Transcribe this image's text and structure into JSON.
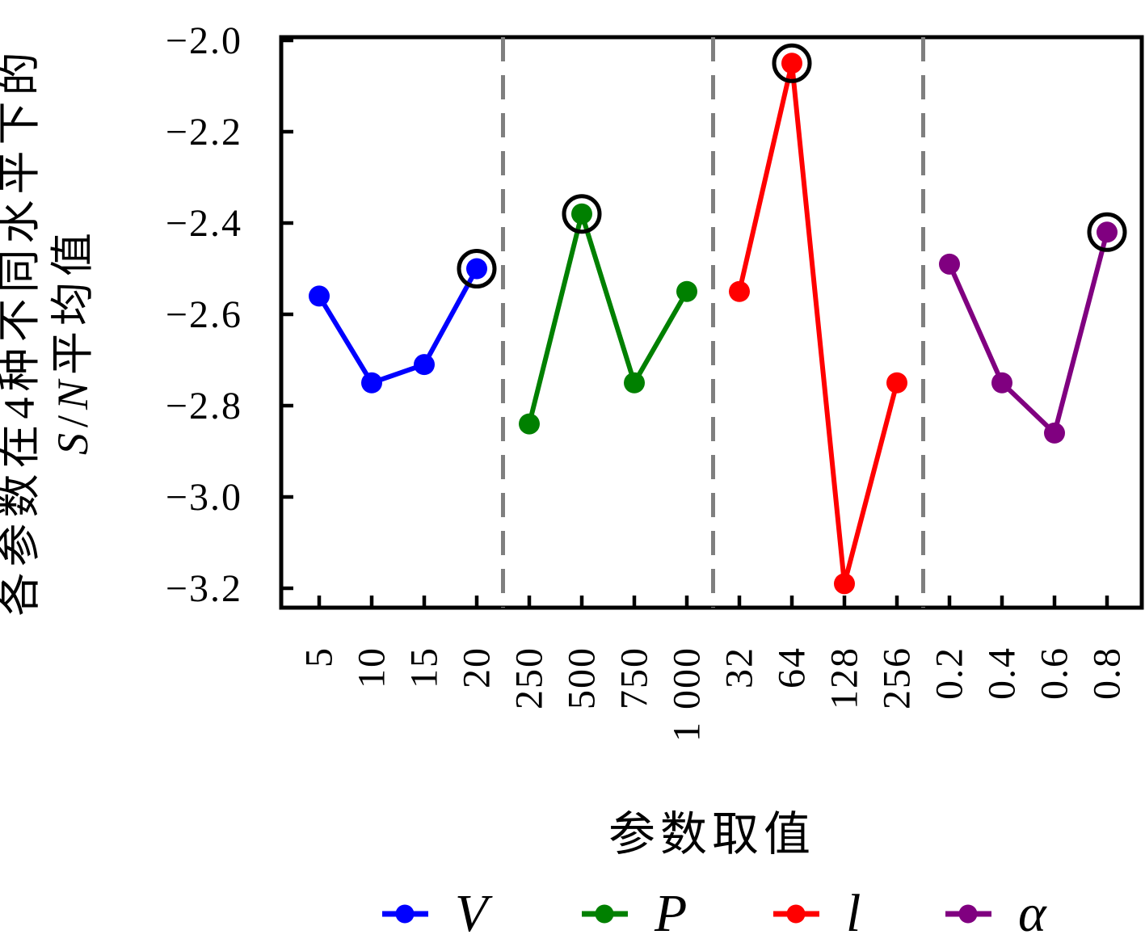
{
  "figure": {
    "background": "#ffffff",
    "ylabel_line1": "各参数在4种不同水平下的",
    "ylabel_sn": {
      "s": "S",
      "slash": "/",
      "n": "N",
      "suffix": "平均值"
    },
    "xlabel": "参数取值"
  },
  "chart_data": {
    "type": "line",
    "title": "",
    "xlabel": "参数取值",
    "ylabel": "各参数在4种不同水平下的 S/N平均值",
    "ylim": [
      -3.24,
      -1.99
    ],
    "yticks": [
      -2.0,
      -2.2,
      -2.4,
      -2.6,
      -2.8,
      -3.0,
      -3.2
    ],
    "ytick_labels": [
      "−2.0",
      "−2.2",
      "−2.4",
      "−2.6",
      "−2.8",
      "−3.0",
      "−3.2"
    ],
    "categories": [
      "5",
      "10",
      "15",
      "20",
      "250",
      "500",
      "750",
      "1 000",
      "32",
      "64",
      "128",
      "256",
      "0.2",
      "0.4",
      "0.6",
      "0.8"
    ],
    "grid": false,
    "group_separator_color": "#7f7f7f",
    "separator_style": "dashed",
    "legend_position": "bottom",
    "best_marker": "black open circle around best level of each parameter",
    "series": [
      {
        "name": "V",
        "color": "#0000ff",
        "levels": [
          "5",
          "10",
          "15",
          "20"
        ],
        "values": [
          -2.56,
          -2.75,
          -2.71,
          -2.5
        ],
        "best_index": 3
      },
      {
        "name": "P",
        "color": "#008000",
        "levels": [
          "250",
          "500",
          "750",
          "1 000"
        ],
        "values": [
          -2.84,
          -2.38,
          -2.75,
          -2.55
        ],
        "best_index": 1
      },
      {
        "name": "l",
        "color": "#ff0000",
        "levels": [
          "32",
          "64",
          "128",
          "256"
        ],
        "values": [
          -2.55,
          -2.05,
          -3.19,
          -2.75
        ],
        "best_index": 1
      },
      {
        "name": "α",
        "color": "#800080",
        "levels": [
          "0.2",
          "0.4",
          "0.6",
          "0.8"
        ],
        "values": [
          -2.49,
          -2.75,
          -2.86,
          -2.42
        ],
        "best_index": 3
      }
    ]
  }
}
